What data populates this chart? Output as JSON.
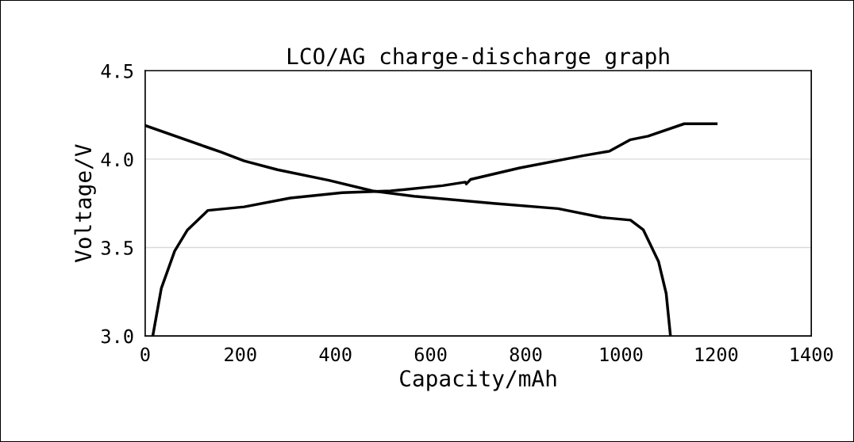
{
  "chart_data": {
    "type": "line",
    "title": "LCO/AG charge-discharge graph",
    "xlabel": "Capacity/mAh",
    "ylabel": "Voltage/V",
    "xlim": [
      0,
      1400
    ],
    "xticks": [
      0,
      200,
      400,
      600,
      800,
      1000,
      1200,
      1400
    ],
    "ylim": [
      3.0,
      4.5
    ],
    "yticks": [
      {
        "value": 3.0,
        "label": "3.0"
      },
      {
        "value": 3.5,
        "label": "3.5"
      },
      {
        "value": 4.0,
        "label": "4.0"
      },
      {
        "value": 4.5,
        "label": "4.5"
      }
    ],
    "grid": "y",
    "legend": false,
    "marker": "none",
    "line_style": "solid",
    "series": [
      {
        "color": "#000000",
        "x": [
          16,
          34,
          62,
          89,
          132,
          208,
          305,
          414,
          516,
          625,
          673,
          675,
          684,
          787,
          922,
          976,
          1020,
          1057,
          1133,
          1200
        ],
        "values": [
          3.0,
          3.27,
          3.48,
          3.6,
          3.71,
          3.73,
          3.78,
          3.81,
          3.82,
          3.85,
          3.87,
          3.86,
          3.885,
          3.95,
          4.02,
          4.045,
          4.11,
          4.13,
          4.2,
          4.2
        ]
      },
      {
        "color": "#000000",
        "x": [
          0,
          127,
          159,
          208,
          278,
          386,
          478,
          565,
          732,
          868,
          960,
          1020,
          1047,
          1079,
          1095,
          1104
        ],
        "values": [
          4.19,
          4.07,
          4.04,
          3.99,
          3.94,
          3.88,
          3.82,
          3.79,
          3.75,
          3.72,
          3.67,
          3.655,
          3.6,
          3.42,
          3.24,
          3.0
        ]
      }
    ]
  }
}
